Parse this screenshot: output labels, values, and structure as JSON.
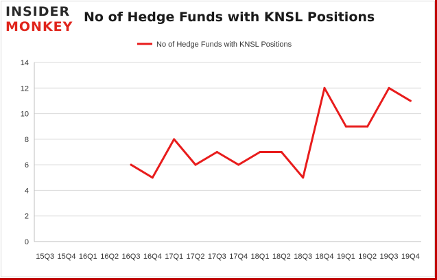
{
  "logo": {
    "line1": "INSIDER",
    "line2": "MONKEY"
  },
  "colors": {
    "series": "#e81c1c",
    "grid": "#d9d9d9",
    "axis": "#bfbfbf",
    "brand_red": "#e0241b"
  },
  "chart_data": {
    "type": "line",
    "title": "No of Hedge Funds with KNSL Positions",
    "categories": [
      "15Q3",
      "15Q4",
      "16Q1",
      "16Q2",
      "16Q3",
      "16Q4",
      "17Q1",
      "17Q2",
      "17Q3",
      "17Q4",
      "18Q1",
      "18Q2",
      "18Q3",
      "18Q4",
      "19Q1",
      "19Q2",
      "19Q3",
      "19Q4"
    ],
    "series": [
      {
        "name": "No of Hedge Funds with KNSL Positions",
        "values": [
          null,
          null,
          null,
          null,
          6,
          5,
          8,
          6,
          7,
          6,
          7,
          7,
          5,
          12,
          9,
          9,
          12,
          11
        ]
      }
    ],
    "ylim": [
      0,
      14
    ],
    "yticks": [
      0,
      2,
      4,
      6,
      8,
      10,
      12,
      14
    ],
    "grid": true,
    "legend": "top-center",
    "xlabel": "",
    "ylabel": ""
  }
}
